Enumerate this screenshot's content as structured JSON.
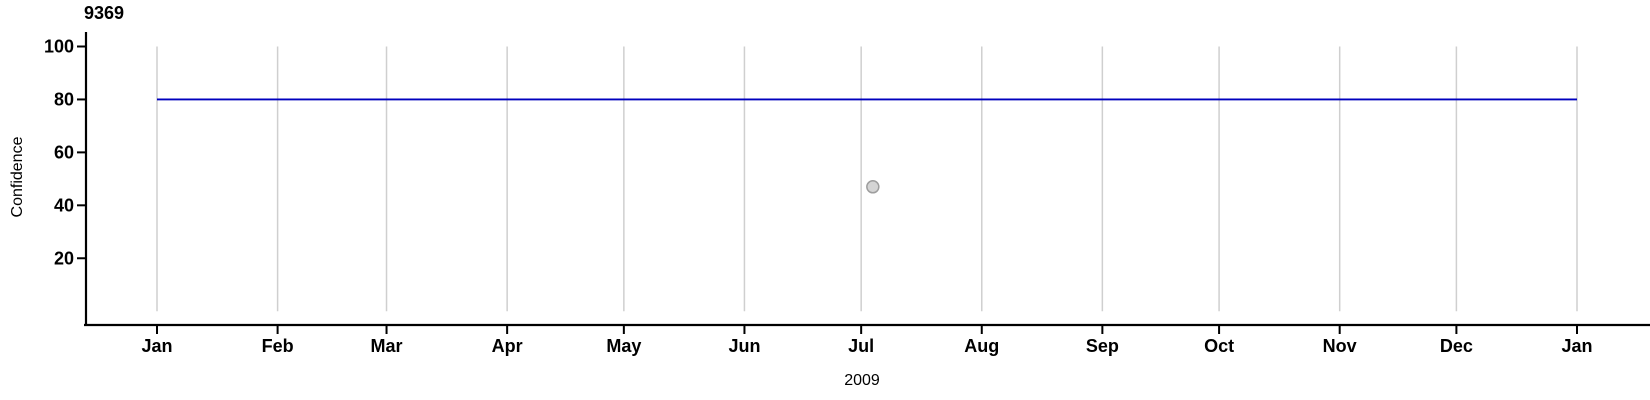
{
  "chart_data": {
    "type": "line",
    "title": "9369",
    "xlabel": "2009",
    "ylabel": "Confidence",
    "x_axis": {
      "tick_labels": [
        "Jan",
        "Feb",
        "Mar",
        "Apr",
        "May",
        "Jun",
        "Jul",
        "Aug",
        "Sep",
        "Oct",
        "Nov",
        "Dec",
        "Jan"
      ],
      "tick_day_offsets": [
        0,
        31,
        59,
        90,
        120,
        151,
        181,
        212,
        243,
        273,
        304,
        334,
        365
      ],
      "range_days": [
        0,
        365
      ],
      "year": "2009"
    },
    "y_axis": {
      "tick_values": [
        20,
        40,
        60,
        80,
        100
      ],
      "range": [
        -5,
        105
      ]
    },
    "grid": {
      "vertical": true,
      "horizontal": false,
      "color": "#CFCFCF",
      "span_values": [
        0,
        100
      ]
    },
    "colors": {
      "axis": "#000000",
      "tick_text": "#000000",
      "line": "#0000BE",
      "point_fill": "#D4D4D4",
      "point_stroke": "#9E9E9E"
    },
    "series": [
      {
        "name": "confidence-threshold-line",
        "type": "line",
        "color": "#0000BE",
        "points": [
          {
            "day": 0,
            "value": 80
          },
          {
            "day": 365,
            "value": 80
          }
        ]
      },
      {
        "name": "observation-point",
        "type": "scatter",
        "fill": "#D4D4D4",
        "stroke": "#9E9E9E",
        "points": [
          {
            "day": 184,
            "value": 47
          }
        ]
      }
    ]
  }
}
